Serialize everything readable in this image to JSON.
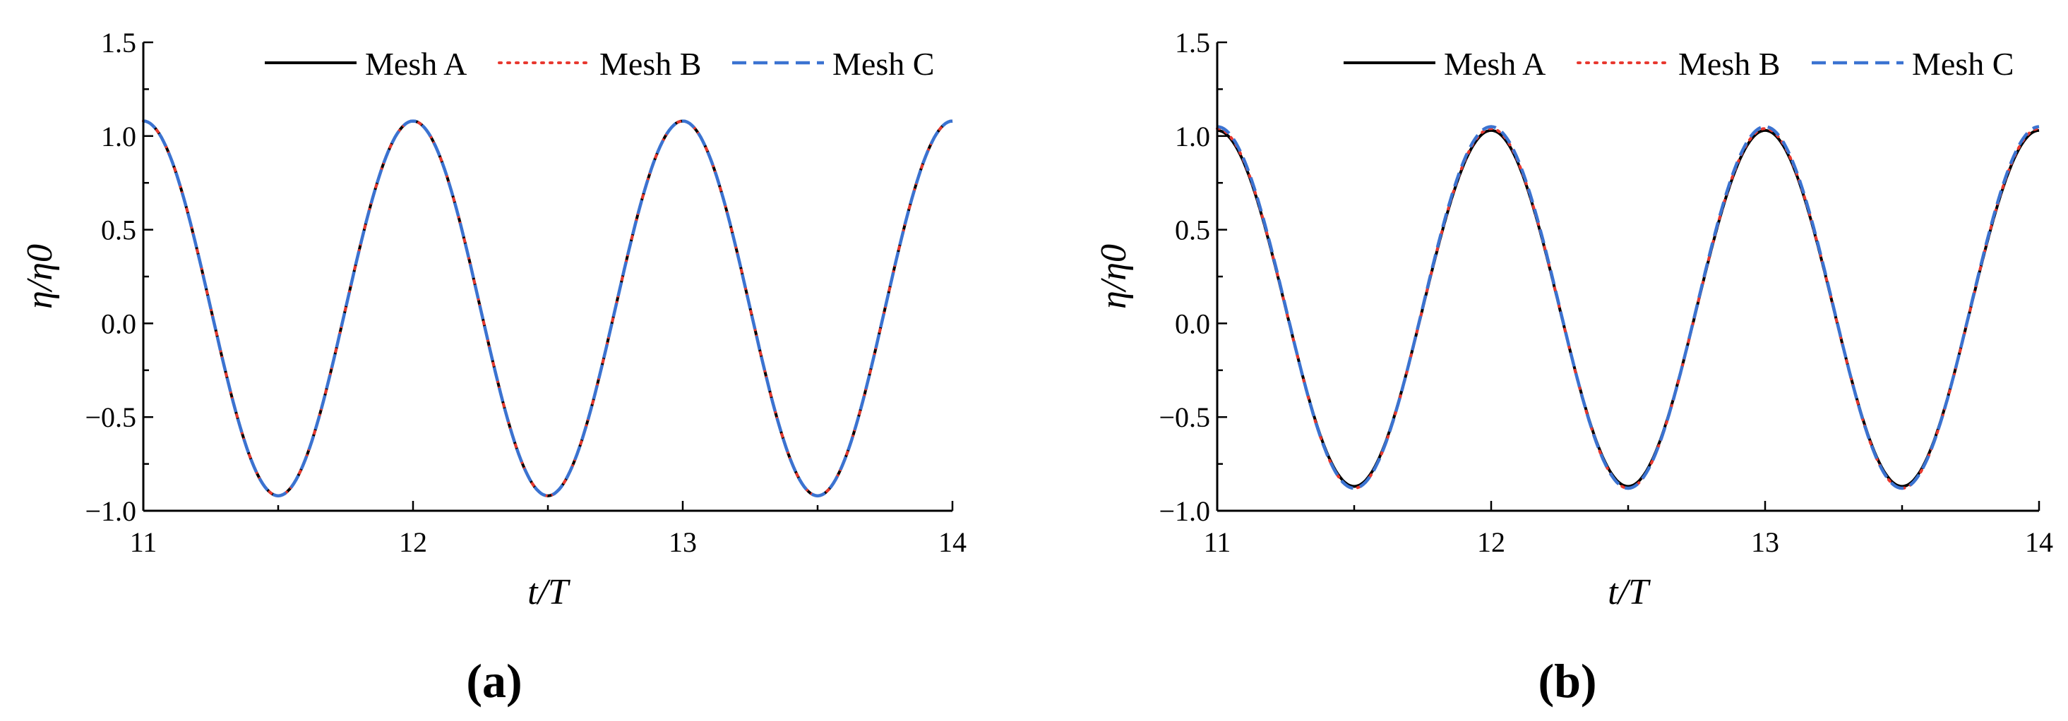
{
  "colors": {
    "mesh_a": "#000000",
    "mesh_b": "#e8382f",
    "mesh_c": "#3b73d1"
  },
  "chart_data": [
    {
      "type": "line",
      "panel_label": "(a)",
      "xlabel": "t/T",
      "ylabel": "η/η0",
      "xlim": [
        11,
        14
      ],
      "ylim": [
        -1.0,
        1.5
      ],
      "x_ticks": [
        "11",
        "12",
        "13",
        "14"
      ],
      "y_ticks": [
        "−1.0",
        "−0.5",
        "0.0",
        "0.5",
        "1.0",
        "1.5"
      ],
      "legend_position": "top-right",
      "series": [
        {
          "name": "Mesh A",
          "style": "solid",
          "x": [
            11,
            11.5,
            12,
            12.5,
            13,
            13.5,
            14
          ],
          "y": [
            1.08,
            -0.92,
            1.08,
            -0.92,
            1.08,
            -0.92,
            1.08
          ]
        },
        {
          "name": "Mesh B",
          "style": "dotted",
          "x": [
            11,
            11.5,
            12,
            12.5,
            13,
            13.5,
            14
          ],
          "y": [
            1.08,
            -0.92,
            1.08,
            -0.92,
            1.08,
            -0.92,
            1.08
          ]
        },
        {
          "name": "Mesh C",
          "style": "dashed",
          "x": [
            11,
            11.5,
            12,
            12.5,
            13,
            13.5,
            14
          ],
          "y": [
            1.08,
            -0.92,
            1.08,
            -0.92,
            1.08,
            -0.92,
            1.08
          ]
        }
      ]
    },
    {
      "type": "line",
      "panel_label": "(b)",
      "xlabel": "t/T",
      "ylabel": "η/η0",
      "xlim": [
        11,
        14
      ],
      "ylim": [
        -1.0,
        1.5
      ],
      "x_ticks": [
        "11",
        "12",
        "13",
        "14"
      ],
      "y_ticks": [
        "−1.0",
        "−0.5",
        "0.0",
        "0.5",
        "1.0",
        "1.5"
      ],
      "legend_position": "top-right",
      "series": [
        {
          "name": "Mesh A",
          "style": "solid",
          "x": [
            11,
            11.5,
            12,
            12.5,
            13,
            13.5,
            14
          ],
          "y": [
            1.03,
            -0.87,
            1.03,
            -0.87,
            1.03,
            -0.87,
            1.03
          ]
        },
        {
          "name": "Mesh B",
          "style": "dotted",
          "x": [
            11,
            11.5,
            12,
            12.5,
            13,
            13.5,
            14
          ],
          "y": [
            1.04,
            -0.88,
            1.04,
            -0.88,
            1.04,
            -0.88,
            1.04
          ]
        },
        {
          "name": "Mesh C",
          "style": "dashed",
          "x": [
            11,
            11.5,
            12,
            12.5,
            13,
            13.5,
            14
          ],
          "y": [
            1.05,
            -0.88,
            1.05,
            -0.88,
            1.05,
            -0.88,
            1.05
          ]
        }
      ]
    }
  ]
}
